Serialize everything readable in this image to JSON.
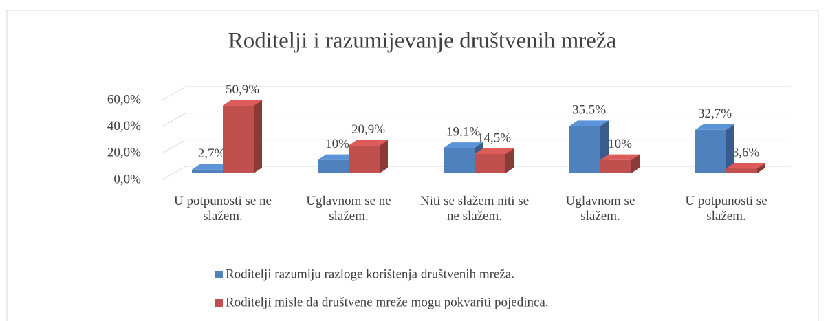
{
  "chart_data": {
    "type": "bar3d",
    "title": "Roditelji i razumijevanje društvenih mreža",
    "categories": [
      "U potpunosti se ne slažem.",
      "Uglavnom se ne slažem.",
      "Niti se slažem niti se ne slažem.",
      "Uglavnom se slažem.",
      "U potpunosti se slažem."
    ],
    "series": [
      {
        "name": "Roditelji razumiju razloge korištenja društvenih mreža.",
        "color": "#4f81bd",
        "values": [
          2.7,
          10,
          19.1,
          35.5,
          32.7
        ],
        "value_labels": [
          "2,7%",
          "10%",
          "19,1%",
          "35,5%",
          "32,7%"
        ]
      },
      {
        "name": "Roditelji misle da društvene mreže mogu pokvariti pojedinca.",
        "color": "#c0504d",
        "values": [
          50.9,
          20.9,
          14.5,
          10,
          3.6
        ],
        "value_labels": [
          "50,9%",
          "20,9%",
          "14,5%",
          "10%",
          "3,6%"
        ]
      }
    ],
    "ylim": [
      0,
      60
    ],
    "yticks": [
      {
        "value": 0,
        "label": "0,0%"
      },
      {
        "value": 20,
        "label": "20,0%"
      },
      {
        "value": 40,
        "label": "40,0%"
      },
      {
        "value": 60,
        "label": "60,0%"
      }
    ],
    "grid": true,
    "legend": "bottom"
  }
}
